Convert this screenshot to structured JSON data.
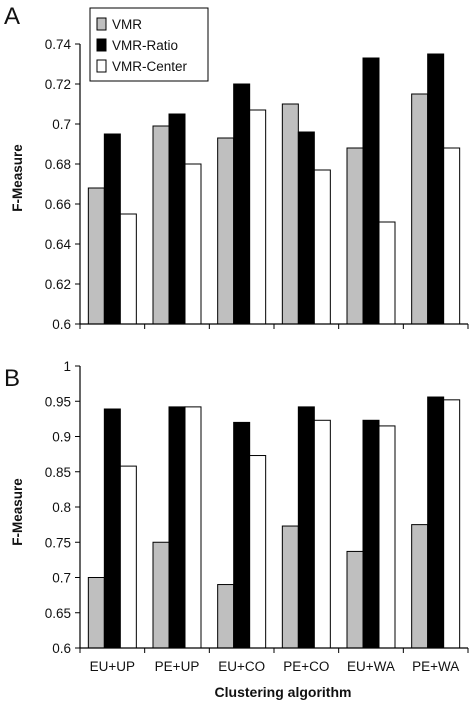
{
  "chart_data": [
    {
      "type": "bar",
      "panel_label": "A",
      "ylabel": "F-Measure",
      "xlabel": "",
      "ylim": [
        0.6,
        0.74
      ],
      "yticks": [
        "0.6",
        "0.62",
        "0.64",
        "0.66",
        "0.68",
        "0.7",
        "0.72",
        "0.74"
      ],
      "categories": [
        "EU+UP",
        "PE+UP",
        "EU+CO",
        "PE+CO",
        "EU+WA",
        "PE+WA"
      ],
      "show_x_tick_labels": false,
      "legend": {
        "position": "top-left"
      },
      "series": [
        {
          "name": "VMR",
          "color": "#bfbfbf",
          "values": [
            0.668,
            0.699,
            0.693,
            0.71,
            0.688,
            0.715
          ]
        },
        {
          "name": "VMR-Ratio",
          "color": "#000000",
          "values": [
            0.695,
            0.705,
            0.72,
            0.696,
            0.733,
            0.735
          ]
        },
        {
          "name": "VMR-Center",
          "color": "#ffffff",
          "values": [
            0.655,
            0.68,
            0.707,
            0.677,
            0.651,
            0.688
          ]
        }
      ]
    },
    {
      "type": "bar",
      "panel_label": "B",
      "ylabel": "F-Measure",
      "xlabel": "Clustering algorithm",
      "ylim": [
        0.6,
        1.0
      ],
      "yticks": [
        "0.6",
        "0.65",
        "0.7",
        "0.75",
        "0.8",
        "0.85",
        "0.9",
        "0.95",
        "1"
      ],
      "categories": [
        "EU+UP",
        "PE+UP",
        "EU+CO",
        "PE+CO",
        "EU+WA",
        "PE+WA"
      ],
      "show_x_tick_labels": true,
      "series": [
        {
          "name": "VMR",
          "color": "#bfbfbf",
          "values": [
            0.7,
            0.75,
            0.69,
            0.773,
            0.737,
            0.775
          ]
        },
        {
          "name": "VMR-Ratio",
          "color": "#000000",
          "values": [
            0.939,
            0.942,
            0.92,
            0.942,
            0.923,
            0.956
          ]
        },
        {
          "name": "VMR-Center",
          "color": "#ffffff",
          "values": [
            0.858,
            0.942,
            0.873,
            0.923,
            0.915,
            0.952
          ]
        }
      ]
    }
  ]
}
